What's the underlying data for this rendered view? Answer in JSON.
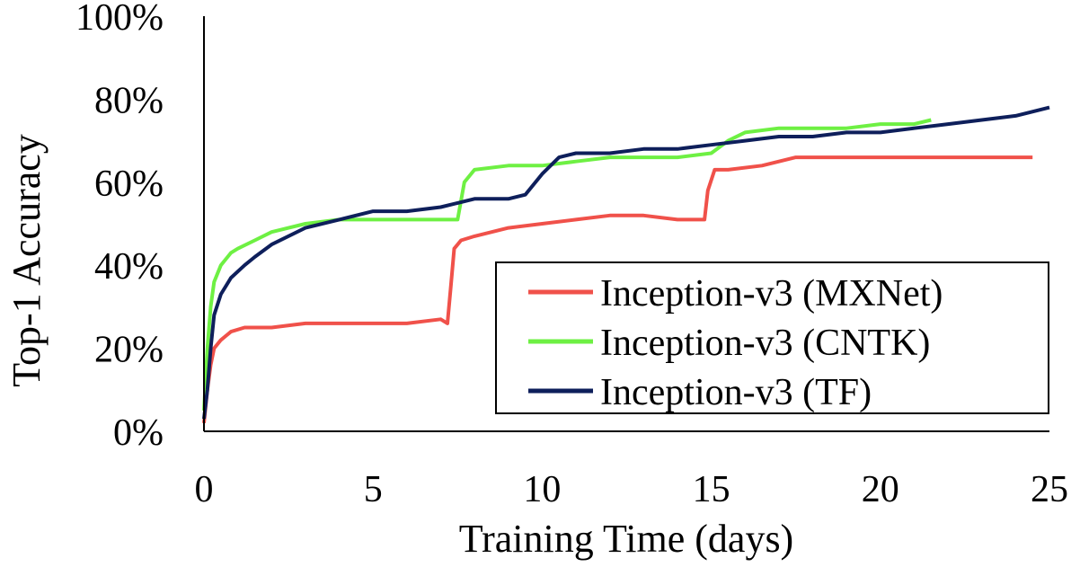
{
  "chart_data": {
    "type": "line",
    "title": "",
    "xlabel": "Training Time (days)",
    "ylabel": "Top-1 Accuracy",
    "xlim": [
      0,
      25
    ],
    "ylim": [
      0,
      100
    ],
    "x_ticks": [
      0,
      5,
      10,
      15,
      20,
      25
    ],
    "x_tick_labels": [
      "0",
      "5",
      "10",
      "15",
      "20",
      "25"
    ],
    "y_ticks": [
      0,
      20,
      40,
      60,
      80,
      100
    ],
    "y_tick_labels": [
      "0%",
      "20%",
      "40%",
      "60%",
      "80%",
      "100%"
    ],
    "grid": false,
    "legend_position": "lower-right",
    "series": [
      {
        "name": "Inception-v3 (MXNet)",
        "color": "#f0514a",
        "x": [
          0,
          0.1,
          0.2,
          0.3,
          0.5,
          0.8,
          1.2,
          2,
          3,
          4,
          5,
          6,
          7,
          7.2,
          7.3,
          7.4,
          7.6,
          8,
          9,
          10,
          11,
          12,
          13,
          14,
          14.8,
          14.9,
          15.1,
          15.5,
          16.5,
          17.5,
          18.5,
          19.5,
          20.5,
          21.5,
          22.5,
          23.5,
          24.5
        ],
        "y": [
          2,
          10,
          16,
          20,
          22,
          24,
          25,
          25,
          26,
          26,
          26,
          26,
          27,
          26,
          35,
          44,
          46,
          47,
          49,
          50,
          51,
          52,
          52,
          51,
          51,
          58,
          63,
          63,
          64,
          66,
          66,
          66,
          66,
          66,
          66,
          66,
          66
        ]
      },
      {
        "name": "Inception-v3 (CNTK)",
        "color": "#6ef043",
        "x": [
          0,
          0.1,
          0.2,
          0.3,
          0.5,
          0.8,
          1,
          1.5,
          2,
          3,
          4,
          5,
          6,
          7,
          7.5,
          7.7,
          8,
          9,
          10,
          11,
          12,
          13,
          14,
          15,
          15.5,
          16,
          17,
          18,
          19,
          20,
          21,
          21.5
        ],
        "y": [
          5,
          20,
          30,
          36,
          40,
          43,
          44,
          46,
          48,
          50,
          51,
          51,
          51,
          51,
          51,
          60,
          63,
          64,
          64,
          65,
          66,
          66,
          66,
          67,
          70,
          72,
          73,
          73,
          73,
          74,
          74,
          75
        ]
      },
      {
        "name": "Inception-v3 (TF)",
        "color": "#0e1f5b",
        "x": [
          0,
          0.1,
          0.2,
          0.3,
          0.5,
          0.8,
          1.2,
          1.5,
          2,
          3,
          4,
          5,
          6,
          7,
          7.5,
          8,
          9,
          9.5,
          10,
          10.5,
          11,
          12,
          13,
          14,
          15,
          16,
          17,
          18,
          19,
          20,
          21,
          22,
          23,
          24,
          25
        ],
        "y": [
          3,
          10,
          20,
          28,
          33,
          37,
          40,
          42,
          45,
          49,
          51,
          53,
          53,
          54,
          55,
          56,
          56,
          57,
          62,
          66,
          67,
          67,
          68,
          68,
          69,
          70,
          71,
          71,
          72,
          72,
          73,
          74,
          75,
          76,
          78
        ]
      }
    ]
  }
}
